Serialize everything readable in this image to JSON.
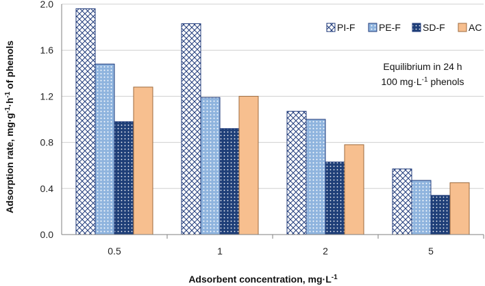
{
  "chart_data": {
    "type": "bar",
    "title": "",
    "xlabel_parts": [
      "Adsorbent concentration, mg·L",
      "-1"
    ],
    "ylabel_parts": [
      "Adsorption rate, mg·g",
      "-1",
      "·h",
      "-1",
      " of phenols"
    ],
    "categories": [
      "0.5",
      "1",
      "2",
      "5"
    ],
    "ylim": [
      0,
      2.0
    ],
    "yticks": [
      "0.0",
      "0.4",
      "0.8",
      "1.2",
      "1.6",
      "2.0"
    ],
    "series": [
      {
        "name": "PI-F",
        "values": [
          1.96,
          1.83,
          1.07,
          0.57
        ],
        "pattern": "crosshatch",
        "color": "#1f3a7a"
      },
      {
        "name": "PE-F",
        "values": [
          1.48,
          1.19,
          1.0,
          0.47
        ],
        "pattern": "dots-light",
        "color": "#8fb4de"
      },
      {
        "name": "SD-F",
        "values": [
          0.98,
          0.92,
          0.63,
          0.34
        ],
        "pattern": "dots-dark",
        "color": "#1f3f78"
      },
      {
        "name": "AC",
        "values": [
          1.28,
          1.2,
          0.78,
          0.45
        ],
        "pattern": "solid",
        "color": "#f7bf8f"
      }
    ],
    "annotation_line1": "Equilibrium in 24 h",
    "annotation_line2_parts": [
      "100 mg·L",
      "-1",
      "  phenols"
    ],
    "legend_position": "top-right"
  }
}
